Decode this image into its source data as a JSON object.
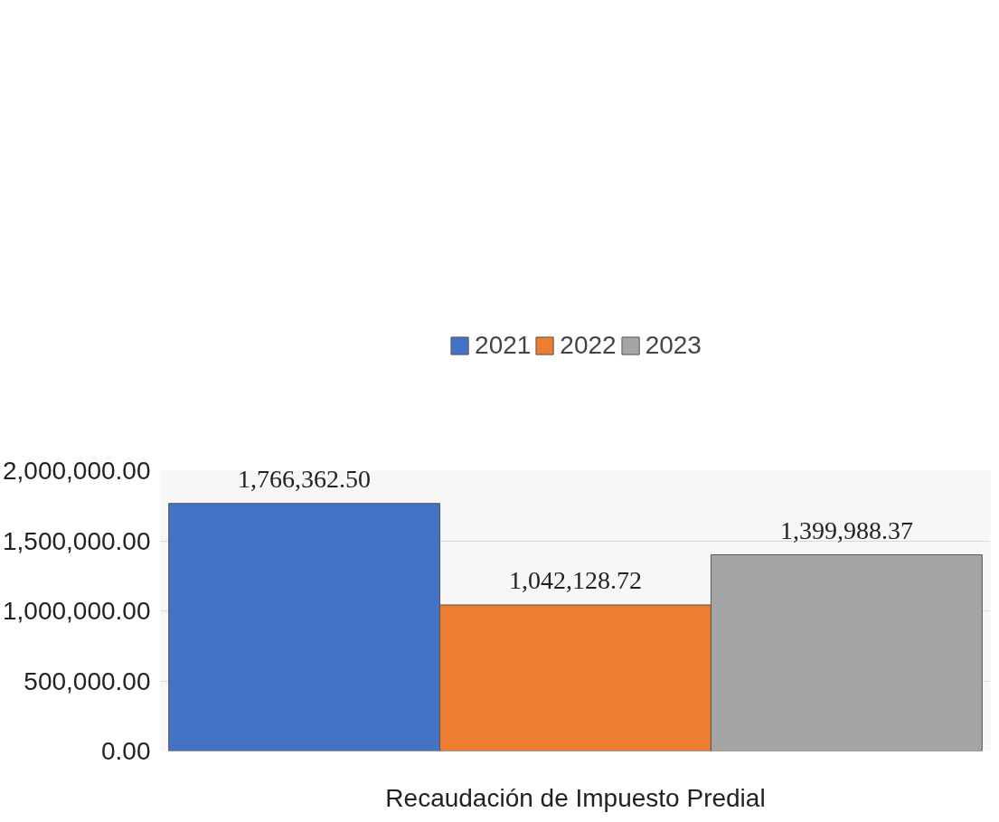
{
  "chart_data": {
    "type": "bar",
    "categories": [
      "Recaudación de Impuesto Predial"
    ],
    "series": [
      {
        "name": "2021",
        "color": "#4472c4",
        "values": [
          1766362.5
        ],
        "value_labels": [
          "1,766,362.50"
        ]
      },
      {
        "name": "2022",
        "color": "#ed7d31",
        "values": [
          1042128.72
        ],
        "value_labels": [
          "1,042,128.72"
        ]
      },
      {
        "name": "2023",
        "color": "#a5a5a5",
        "values": [
          1399988.37
        ],
        "value_labels": [
          "1,399,988.37"
        ]
      }
    ],
    "ylim": [
      0,
      2000000
    ],
    "yticks": [
      {
        "value": 0,
        "label": "0.00"
      },
      {
        "value": 500000,
        "label": "500,000.00"
      },
      {
        "value": 1000000,
        "label": "1,000,000.00"
      },
      {
        "value": 1500000,
        "label": "1,500,000.00"
      },
      {
        "value": 2000000,
        "label": "2,000,000.00"
      }
    ],
    "grid": "y",
    "legend": "top"
  }
}
